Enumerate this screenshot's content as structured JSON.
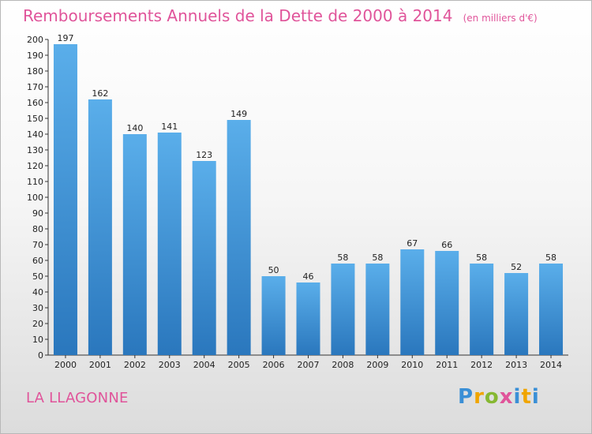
{
  "header": {
    "title": "Remboursements Annuels de la Dette de 2000 à 2014",
    "subtitle": "(en milliers d'€)"
  },
  "footer": {
    "commune": "LA LLAGONNE",
    "logo_text": "Proxiti"
  },
  "colors": {
    "bar_top": "#5aaeea",
    "bar_bottom": "#2a77bd",
    "title": "#e0549a"
  },
  "chart_data": {
    "type": "bar",
    "title": "Remboursements Annuels de la Dette de 2000 à 2014",
    "subtitle": "(en milliers d'€)",
    "xlabel": "",
    "ylabel": "",
    "categories": [
      "2000",
      "2001",
      "2002",
      "2003",
      "2004",
      "2005",
      "2006",
      "2007",
      "2008",
      "2009",
      "2010",
      "2011",
      "2012",
      "2013",
      "2014"
    ],
    "values": [
      197,
      162,
      140,
      141,
      123,
      149,
      50,
      46,
      58,
      58,
      67,
      66,
      58,
      52,
      58
    ],
    "ylim": [
      0,
      200
    ],
    "ytick_step": 10,
    "grid": false,
    "data_labels": true
  }
}
